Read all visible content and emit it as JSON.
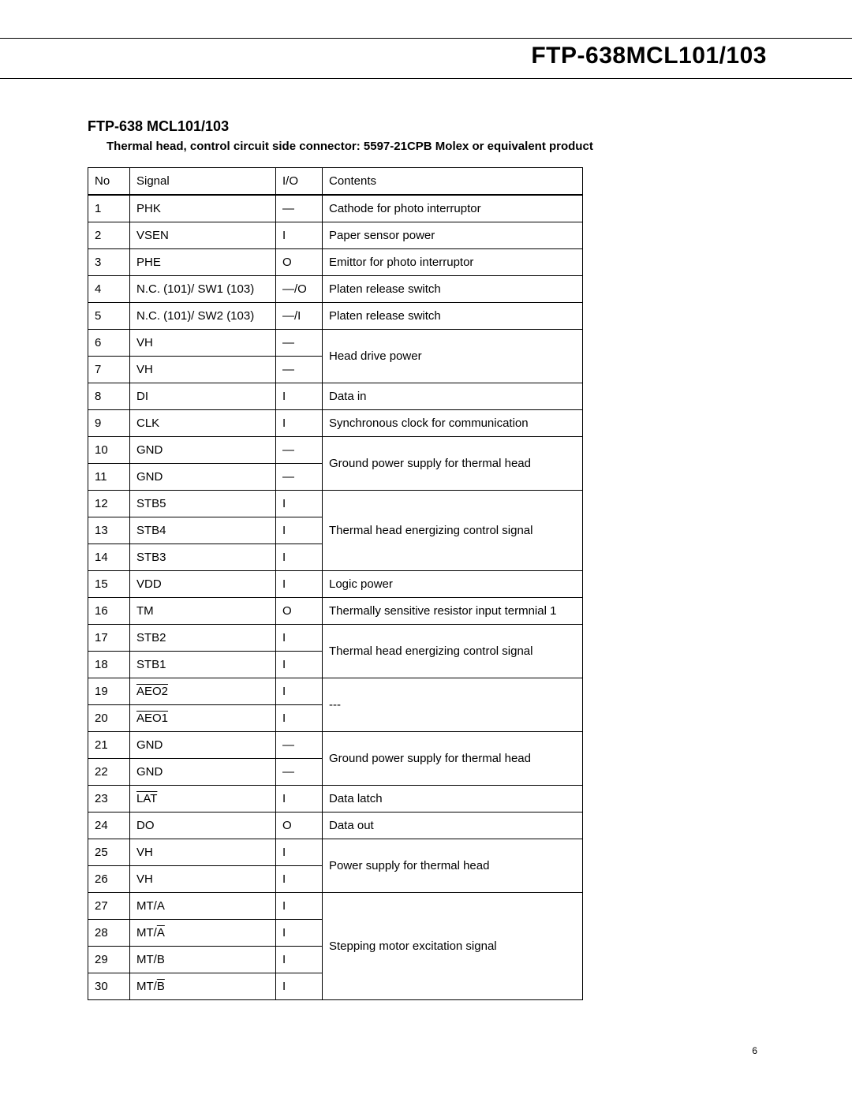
{
  "header": {
    "title": "FTP-638MCL101/103"
  },
  "section": {
    "title": "FTP-638 MCL101/103",
    "subtitle": "Thermal head, control circuit side connector: 5597-21CPB Molex or equivalent product"
  },
  "table": {
    "columns": {
      "no": "No",
      "signal": "Signal",
      "io": "I/O",
      "contents": "Contents"
    },
    "rows": [
      {
        "no": "1",
        "signal": "PHK",
        "io": "—",
        "contents": "Cathode for photo interruptor"
      },
      {
        "no": "2",
        "signal": "VSEN",
        "io": "I",
        "contents": "Paper sensor power"
      },
      {
        "no": "3",
        "signal": "PHE",
        "io": "O",
        "contents": "Emittor for photo interruptor"
      },
      {
        "no": "4",
        "signal": "N.C. (101)/ SW1 (103)",
        "io": "—/O",
        "contents": "Platen release switch"
      },
      {
        "no": "5",
        "signal": "N.C. (101)/ SW2 (103)",
        "io": "—/I",
        "contents": "Platen release switch"
      },
      {
        "no": "6",
        "signal": "VH",
        "io": "—",
        "contents": "Head drive power",
        "rowspan_contents": 2
      },
      {
        "no": "7",
        "signal": "VH",
        "io": "—"
      },
      {
        "no": "8",
        "signal": "DI",
        "io": "I",
        "contents": "Data in"
      },
      {
        "no": "9",
        "signal": "CLK",
        "io": "I",
        "contents": "Synchronous clock for communication"
      },
      {
        "no": "10",
        "signal": "GND",
        "io": "—",
        "contents": "Ground power supply for thermal head",
        "rowspan_contents": 2
      },
      {
        "no": "11",
        "signal": "GND",
        "io": "—"
      },
      {
        "no": "12",
        "signal": "STB5",
        "io": "I",
        "contents": "Thermal head energizing control signal",
        "rowspan_contents": 3
      },
      {
        "no": "13",
        "signal": "STB4",
        "io": "I"
      },
      {
        "no": "14",
        "signal": "STB3",
        "io": "I"
      },
      {
        "no": "15",
        "signal": "VDD",
        "io": "I",
        "contents": "Logic power"
      },
      {
        "no": "16",
        "signal": "TM",
        "io": "O",
        "contents": "Thermally sensitive resistor input termnial 1"
      },
      {
        "no": "17",
        "signal": "STB2",
        "io": "I",
        "contents": "Thermal head energizing control signal",
        "rowspan_contents": 2
      },
      {
        "no": "18",
        "signal": "STB1",
        "io": "I"
      },
      {
        "no": "19",
        "signal": "AEO2",
        "signal_overline": true,
        "io": "I",
        "contents": "---",
        "rowspan_contents": 2
      },
      {
        "no": "20",
        "signal": "AEO1",
        "signal_overline": true,
        "io": "I"
      },
      {
        "no": "21",
        "signal": "GND",
        "io": "—",
        "contents": "Ground power supply for thermal head",
        "rowspan_contents": 2
      },
      {
        "no": "22",
        "signal": "GND",
        "io": "—"
      },
      {
        "no": "23",
        "signal": "LAT",
        "signal_overline": true,
        "io": "I",
        "contents": "Data latch"
      },
      {
        "no": "24",
        "signal": "DO",
        "io": "O",
        "contents": "Data out"
      },
      {
        "no": "25",
        "signal": "VH",
        "io": "I",
        "contents": "Power supply for thermal head",
        "rowspan_contents": 2
      },
      {
        "no": "26",
        "signal": "VH",
        "io": "I"
      },
      {
        "no": "27",
        "signal": "MT/A",
        "io": "I",
        "contents": "Stepping motor excitation signal",
        "rowspan_contents": 4
      },
      {
        "no": "28",
        "signal": "MT/A",
        "signal_part_overline": "A",
        "io": "I"
      },
      {
        "no": "29",
        "signal": "MT/B",
        "io": "I"
      },
      {
        "no": "30",
        "signal": "MT/B",
        "signal_part_overline": "B",
        "io": "I"
      }
    ]
  },
  "page_number": "6"
}
